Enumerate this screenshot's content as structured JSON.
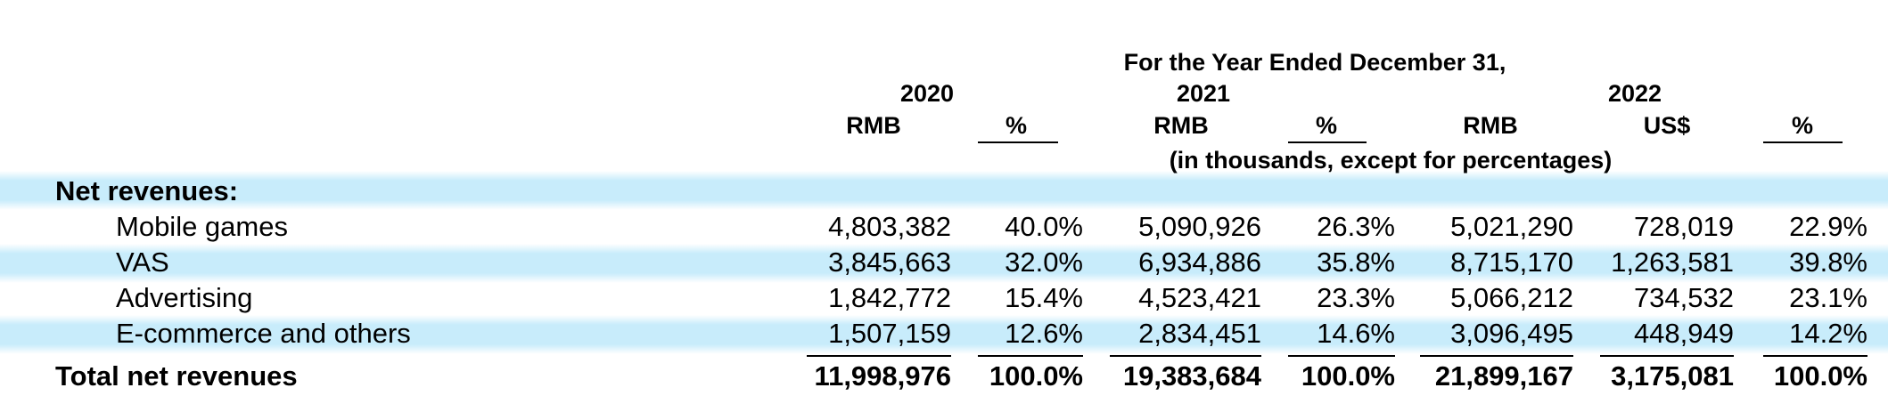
{
  "header": {
    "period": "For the Year Ended December 31,",
    "units_note": "(in thousands, except for percentages)",
    "years": [
      "2020",
      "2021",
      "2022"
    ],
    "columns": [
      "RMB",
      "%",
      "RMB",
      "%",
      "RMB",
      "US$",
      "%"
    ]
  },
  "section_label": "Net revenues:",
  "rows": [
    {
      "label": "Mobile games",
      "values": [
        "4,803,382",
        "40.0%",
        "5,090,926",
        "26.3%",
        "5,021,290",
        "728,019",
        "22.9%"
      ]
    },
    {
      "label": "VAS",
      "values": [
        "3,845,663",
        "32.0%",
        "6,934,886",
        "35.8%",
        "8,715,170",
        "1,263,581",
        "39.8%"
      ]
    },
    {
      "label": "Advertising",
      "values": [
        "1,842,772",
        "15.4%",
        "4,523,421",
        "23.3%",
        "5,066,212",
        "734,532",
        "23.1%"
      ]
    },
    {
      "label": "E-commerce and others",
      "values": [
        "1,507,159",
        "12.6%",
        "2,834,451",
        "14.6%",
        "3,096,495",
        "448,949",
        "14.2%"
      ]
    }
  ],
  "total": {
    "label": "Total net revenues",
    "values": [
      "11,998,976",
      "100.0%",
      "19,383,684",
      "100.0%",
      "21,899,167",
      "3,175,081",
      "100.0%"
    ]
  },
  "colors": {
    "band": "#c8ecfb",
    "text": "#000000"
  }
}
